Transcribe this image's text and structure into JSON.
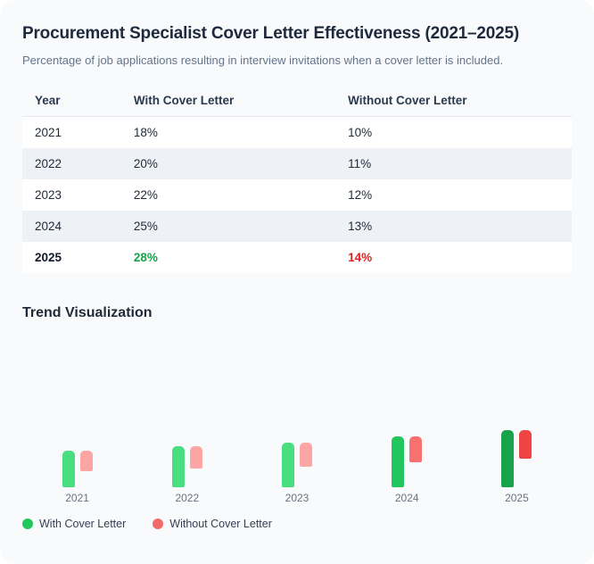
{
  "header": {
    "title": "Procurement Specialist Cover Letter Effectiveness (2021–2025)",
    "subtitle": "Percentage of job applications resulting in interview invitations when a cover letter is included."
  },
  "table": {
    "headers": [
      "Year",
      "With Cover Letter",
      "Without Cover Letter"
    ],
    "rows": [
      {
        "year": "2021",
        "with_cover": "18%",
        "without_cover": "10%"
      },
      {
        "year": "2022",
        "with_cover": "20%",
        "without_cover": "11%"
      },
      {
        "year": "2023",
        "with_cover": "22%",
        "without_cover": "12%"
      },
      {
        "year": "2024",
        "with_cover": "25%",
        "without_cover": "13%"
      },
      {
        "year": "2025",
        "with_cover": "28%",
        "without_cover": "14%"
      }
    ],
    "highlight_row_year": "2025",
    "highlight_with_color": "#16a34a",
    "highlight_without_color": "#dc2626"
  },
  "chart_data": {
    "type": "bar",
    "title": "Trend Visualization",
    "categories": [
      "2021",
      "2022",
      "2023",
      "2024",
      "2025"
    ],
    "series": [
      {
        "name": "With Cover Letter",
        "values": [
          18,
          20,
          22,
          25,
          28
        ],
        "bar_colors": [
          "#4ade80",
          "#4ade80",
          "#4ade80",
          "#22c55e",
          "#16a34a"
        ]
      },
      {
        "name": "Without Cover Letter",
        "values": [
          10,
          11,
          12,
          13,
          14
        ],
        "bar_colors": [
          "#fca5a5",
          "#fca5a5",
          "#fca5a5",
          "#f87171",
          "#ef4444"
        ]
      }
    ],
    "unit": "%",
    "ylim": [
      0,
      28
    ],
    "grid": false,
    "legend_position": "bottom-left",
    "bar_layout": "paired bars top-aligned within each year, pair anchored to bottom baseline, color deepens in later years"
  },
  "legend": {
    "items": [
      {
        "label": "With Cover Letter",
        "color": "#22c55e"
      },
      {
        "label": "Without Cover Letter",
        "color": "#f26b6b"
      }
    ]
  },
  "colors": {
    "card_background": "#f8fafc",
    "row_alt_background": "#eef2f7",
    "title_color": "#1e293b",
    "subtitle_color": "#64748b"
  }
}
